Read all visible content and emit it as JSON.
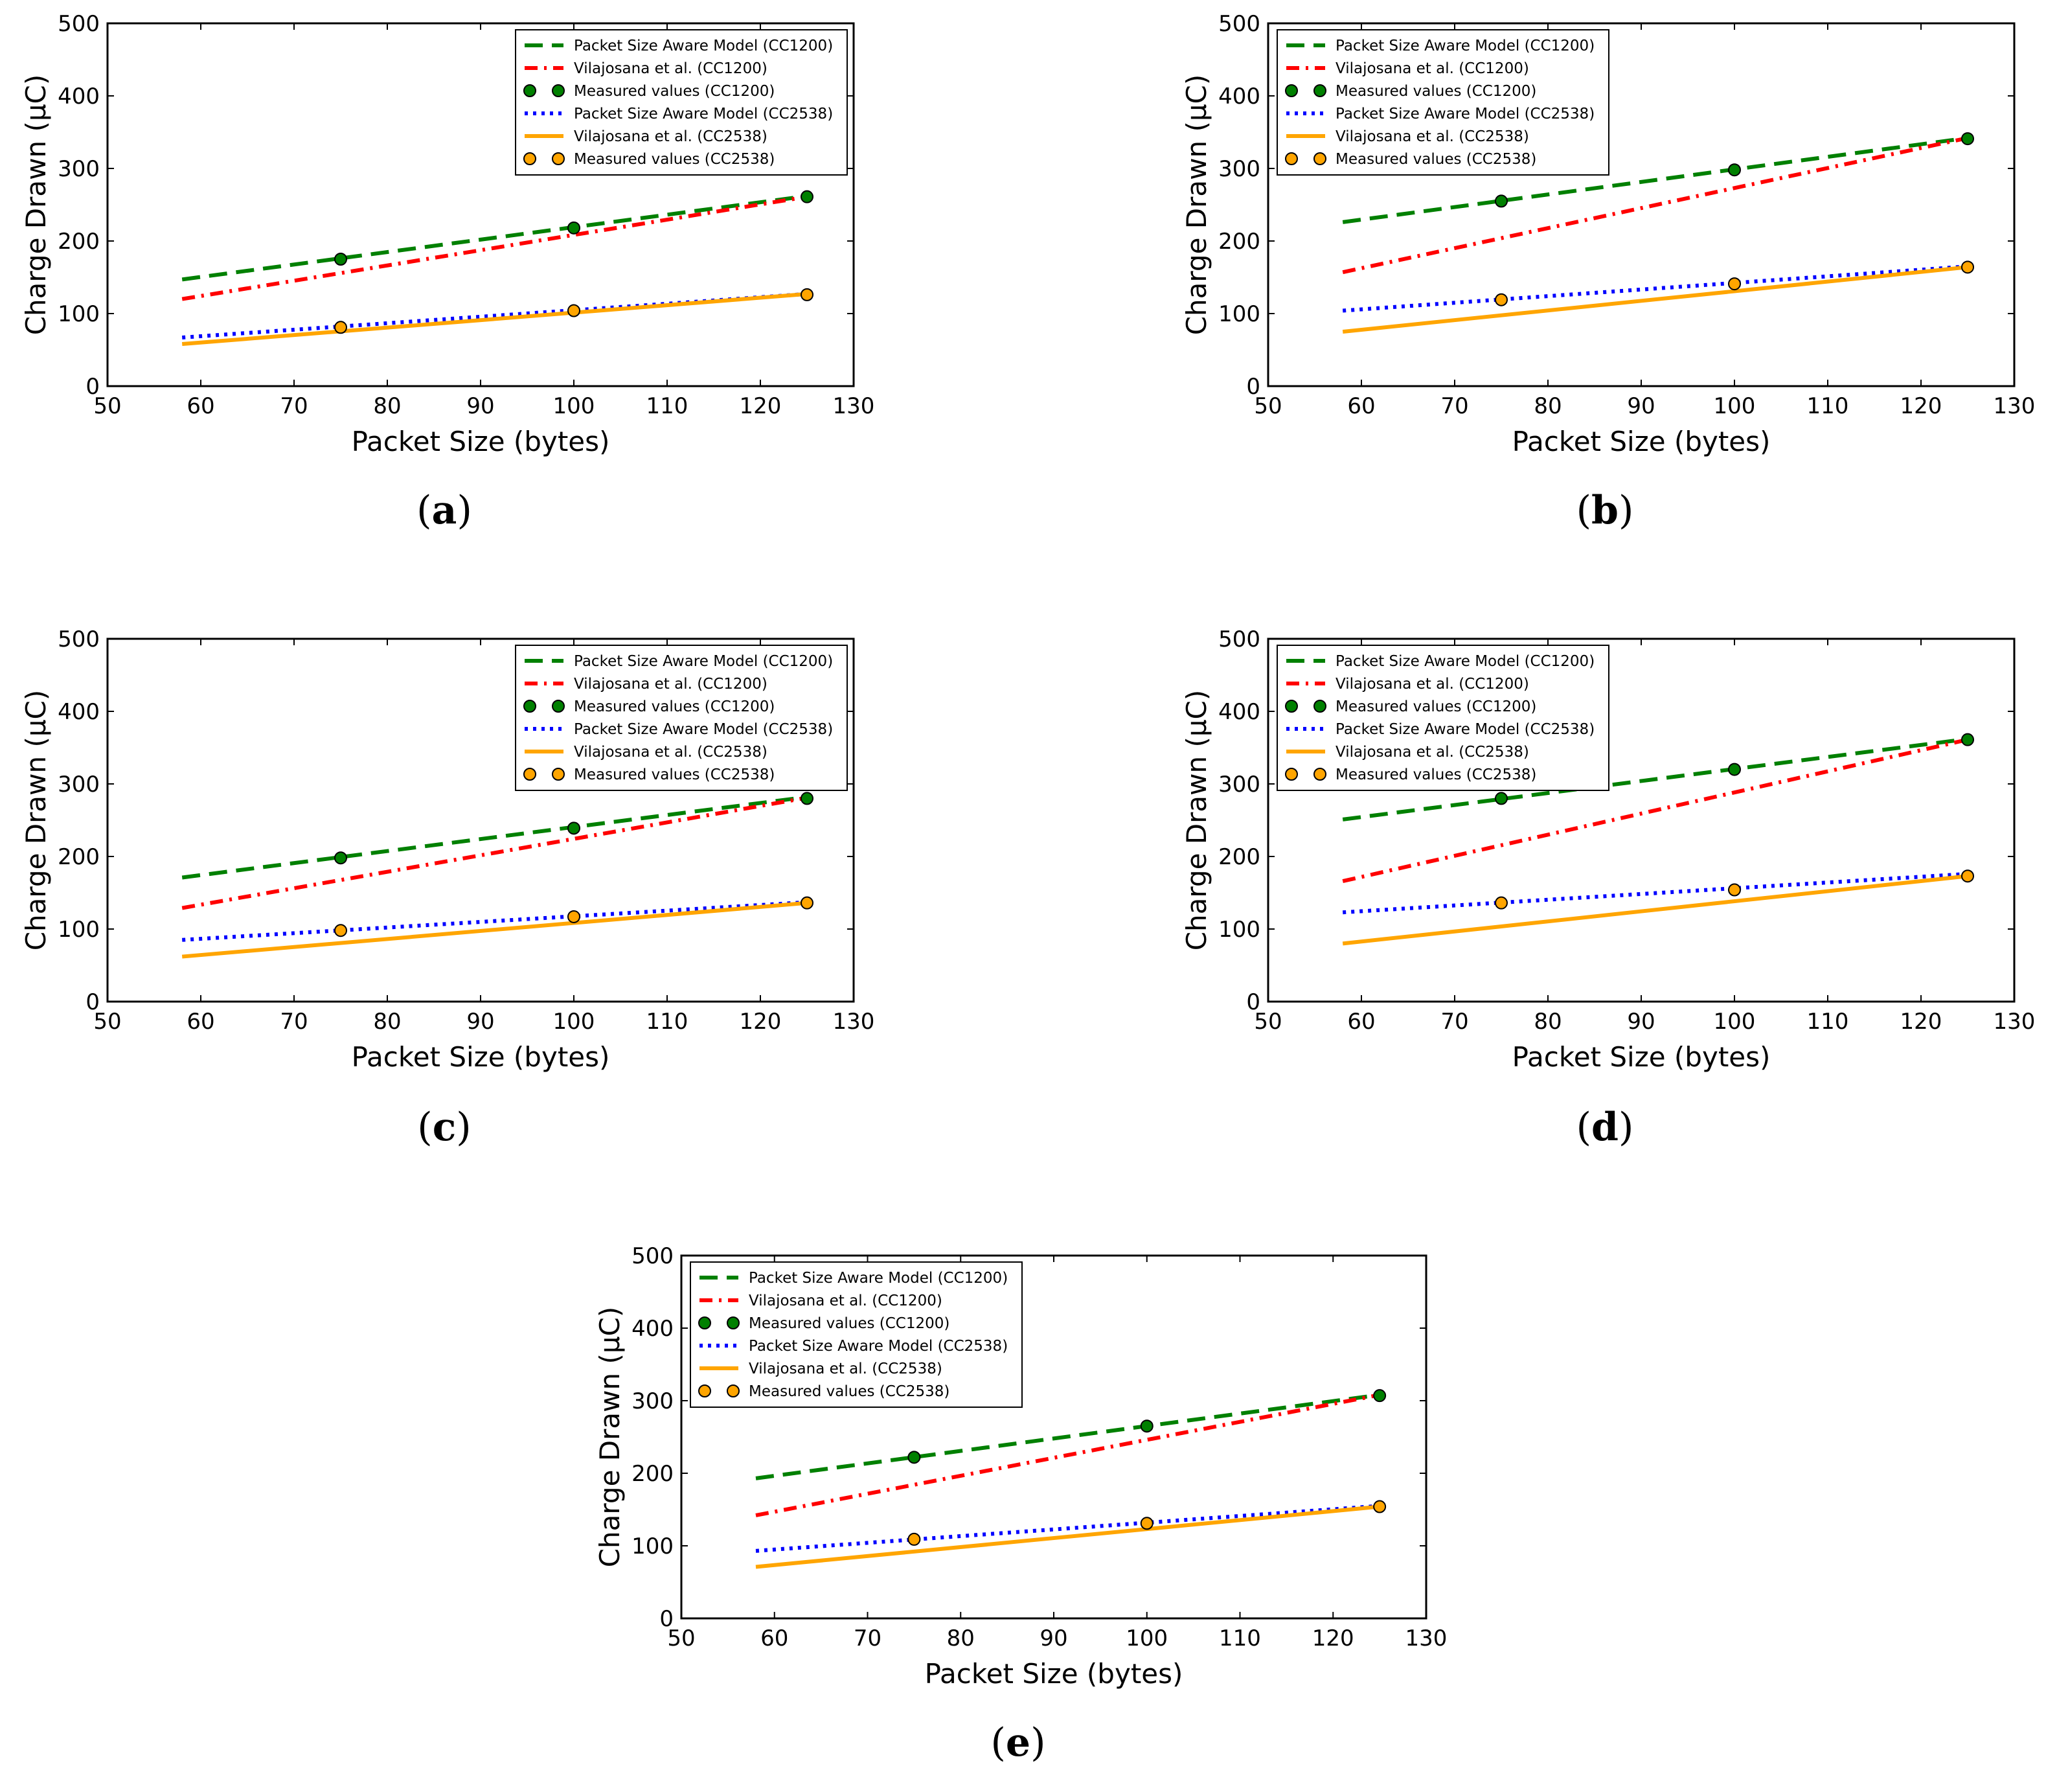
{
  "figure": {
    "chart_data": [
      {
        "panel": "a",
        "caption_open": "(",
        "caption_letter": "a",
        "caption_close": ")",
        "type": "line",
        "xlabel": "Packet Size (bytes)",
        "ylabel": "Charge Drawn (μC)",
        "xlim": [
          50,
          130
        ],
        "ylim": [
          0,
          500
        ],
        "xticks": [
          "50",
          "60",
          "70",
          "80",
          "90",
          "100",
          "110",
          "120",
          "130"
        ],
        "yticks": [
          "0",
          "100",
          "200",
          "300",
          "400",
          "500"
        ],
        "legend_position": "top-right",
        "series": [
          {
            "name": "Packet Size Aware Model (CC1200)",
            "style": "dashed",
            "color": "#008000",
            "x": [
              58,
              125
            ],
            "y": [
              147,
              262
            ]
          },
          {
            "name": "Vilajosana et al. (CC1200)",
            "style": "dashdot",
            "color": "#ff0000",
            "x": [
              58,
              125
            ],
            "y": [
              120,
              261
            ]
          },
          {
            "name": "Measured values (CC1200)",
            "style": "markers",
            "color": "#008000",
            "x": [
              75,
              100,
              125
            ],
            "y": [
              175,
              218,
              261
            ]
          },
          {
            "name": "Packet Size Aware Model (CC2538)",
            "style": "dotted",
            "color": "#0000ff",
            "x": [
              58,
              125
            ],
            "y": [
              67,
              127
            ]
          },
          {
            "name": "Vilajosana et al. (CC2538)",
            "style": "solid",
            "color": "#ffa500",
            "x": [
              58,
              125
            ],
            "y": [
              58,
              127
            ]
          },
          {
            "name": "Measured values (CC2538)",
            "style": "markers",
            "color": "#ffa500",
            "x": [
              75,
              100,
              125
            ],
            "y": [
              81,
              104,
              126
            ]
          }
        ]
      },
      {
        "panel": "b",
        "caption_open": "(",
        "caption_letter": "b",
        "caption_close": ")",
        "type": "line",
        "xlabel": "Packet Size (bytes)",
        "ylabel": "Charge Drawn (μC)",
        "xlim": [
          50,
          130
        ],
        "ylim": [
          0,
          500
        ],
        "xticks": [
          "50",
          "60",
          "70",
          "80",
          "90",
          "100",
          "110",
          "120",
          "130"
        ],
        "yticks": [
          "0",
          "100",
          "200",
          "300",
          "400",
          "500"
        ],
        "legend_position": "top-left",
        "series": [
          {
            "name": "Packet Size Aware Model (CC1200)",
            "style": "dashed",
            "color": "#008000",
            "x": [
              58,
              125
            ],
            "y": [
              226,
              342
            ]
          },
          {
            "name": "Vilajosana et al. (CC1200)",
            "style": "dashdot",
            "color": "#ff0000",
            "x": [
              58,
              125
            ],
            "y": [
              157,
              342
            ]
          },
          {
            "name": "Measured values (CC1200)",
            "style": "markers",
            "color": "#008000",
            "x": [
              75,
              100,
              125
            ],
            "y": [
              255,
              298,
              341
            ]
          },
          {
            "name": "Packet Size Aware Model (CC2538)",
            "style": "dotted",
            "color": "#0000ff",
            "x": [
              58,
              125
            ],
            "y": [
              104,
              165
            ]
          },
          {
            "name": "Vilajosana et al. (CC2538)",
            "style": "solid",
            "color": "#ffa500",
            "x": [
              58,
              125
            ],
            "y": [
              75,
              164
            ]
          },
          {
            "name": "Measured values (CC2538)",
            "style": "markers",
            "color": "#ffa500",
            "x": [
              75,
              100,
              125
            ],
            "y": [
              119,
              141,
              164
            ]
          }
        ]
      },
      {
        "panel": "c",
        "caption_open": "(",
        "caption_letter": "c",
        "caption_close": ")",
        "type": "line",
        "xlabel": "Packet Size (bytes)",
        "ylabel": "Charge Drawn (μC)",
        "xlim": [
          50,
          130
        ],
        "ylim": [
          0,
          500
        ],
        "xticks": [
          "50",
          "60",
          "70",
          "80",
          "90",
          "100",
          "110",
          "120",
          "130"
        ],
        "yticks": [
          "0",
          "100",
          "200",
          "300",
          "400",
          "500"
        ],
        "legend_position": "top-right",
        "series": [
          {
            "name": "Packet Size Aware Model (CC1200)",
            "style": "dashed",
            "color": "#008000",
            "x": [
              58,
              125
            ],
            "y": [
              171,
              282
            ]
          },
          {
            "name": "Vilajosana et al. (CC1200)",
            "style": "dashdot",
            "color": "#ff0000",
            "x": [
              58,
              125
            ],
            "y": [
              129,
              281
            ]
          },
          {
            "name": "Measured values (CC1200)",
            "style": "markers",
            "color": "#008000",
            "x": [
              75,
              100,
              125
            ],
            "y": [
              198,
              239,
              280
            ]
          },
          {
            "name": "Packet Size Aware Model (CC2538)",
            "style": "dotted",
            "color": "#0000ff",
            "x": [
              58,
              125
            ],
            "y": [
              85,
              137
            ]
          },
          {
            "name": "Vilajosana et al. (CC2538)",
            "style": "solid",
            "color": "#ffa500",
            "x": [
              58,
              125
            ],
            "y": [
              62,
              136
            ]
          },
          {
            "name": "Measured values (CC2538)",
            "style": "markers",
            "color": "#ffa500",
            "x": [
              75,
              100,
              125
            ],
            "y": [
              98,
              117,
              136
            ]
          }
        ]
      },
      {
        "panel": "d",
        "caption_open": "(",
        "caption_letter": "d",
        "caption_close": ")",
        "type": "line",
        "xlabel": "Packet Size (bytes)",
        "ylabel": "Charge Drawn (μC)",
        "xlim": [
          50,
          130
        ],
        "ylim": [
          0,
          500
        ],
        "xticks": [
          "50",
          "60",
          "70",
          "80",
          "90",
          "100",
          "110",
          "120",
          "130"
        ],
        "yticks": [
          "0",
          "100",
          "200",
          "300",
          "400",
          "500"
        ],
        "legend_position": "top-left",
        "series": [
          {
            "name": "Packet Size Aware Model (CC1200)",
            "style": "dashed",
            "color": "#008000",
            "x": [
              58,
              125
            ],
            "y": [
              251,
              362
            ]
          },
          {
            "name": "Vilajosana et al. (CC1200)",
            "style": "dashdot",
            "color": "#ff0000",
            "x": [
              58,
              125
            ],
            "y": [
              166,
              361
            ]
          },
          {
            "name": "Measured values (CC1200)",
            "style": "markers",
            "color": "#008000",
            "x": [
              75,
              100,
              125
            ],
            "y": [
              280,
              320,
              361
            ]
          },
          {
            "name": "Packet Size Aware Model (CC2538)",
            "style": "dotted",
            "color": "#0000ff",
            "x": [
              58,
              125
            ],
            "y": [
              123,
              176
            ]
          },
          {
            "name": "Vilajosana et al. (CC2538)",
            "style": "solid",
            "color": "#ffa500",
            "x": [
              58,
              125
            ],
            "y": [
              80,
              173
            ]
          },
          {
            "name": "Measured values (CC2538)",
            "style": "markers",
            "color": "#ffa500",
            "x": [
              75,
              100,
              125
            ],
            "y": [
              136,
              154,
              173
            ]
          }
        ]
      },
      {
        "panel": "e",
        "caption_open": "(",
        "caption_letter": "e",
        "caption_close": ")",
        "type": "line",
        "xlabel": "Packet Size (bytes)",
        "ylabel": "Charge Drawn (μC)",
        "xlim": [
          50,
          130
        ],
        "ylim": [
          0,
          500
        ],
        "xticks": [
          "50",
          "60",
          "70",
          "80",
          "90",
          "100",
          "110",
          "120",
          "130"
        ],
        "yticks": [
          "0",
          "100",
          "200",
          "300",
          "400",
          "500"
        ],
        "legend_position": "top-left",
        "series": [
          {
            "name": "Packet Size Aware Model (CC1200)",
            "style": "dashed",
            "color": "#008000",
            "x": [
              58,
              125
            ],
            "y": [
              193,
              308
            ]
          },
          {
            "name": "Vilajosana et al. (CC1200)",
            "style": "dashdot",
            "color": "#ff0000",
            "x": [
              58,
              125
            ],
            "y": [
              142,
              308
            ]
          },
          {
            "name": "Measured values (CC1200)",
            "style": "markers",
            "color": "#008000",
            "x": [
              75,
              100,
              125
            ],
            "y": [
              222,
              265,
              307
            ]
          },
          {
            "name": "Packet Size Aware Model (CC2538)",
            "style": "dotted",
            "color": "#0000ff",
            "x": [
              58,
              125
            ],
            "y": [
              93,
              155
            ]
          },
          {
            "name": "Vilajosana et al. (CC2538)",
            "style": "solid",
            "color": "#ffa500",
            "x": [
              58,
              125
            ],
            "y": [
              71,
              154
            ]
          },
          {
            "name": "Measured values (CC2538)",
            "style": "markers",
            "color": "#ffa500",
            "x": [
              75,
              100,
              125
            ],
            "y": [
              109,
              131,
              154
            ]
          }
        ]
      }
    ]
  }
}
